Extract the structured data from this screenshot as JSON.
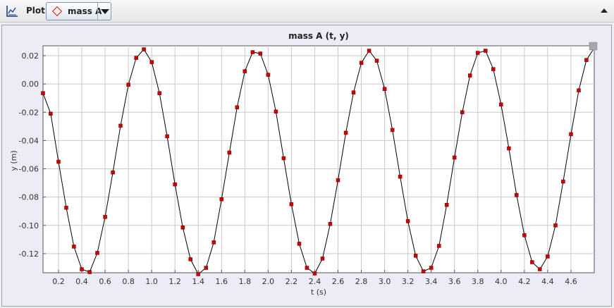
{
  "toolbar": {
    "plot_label": "Plot",
    "series_button_label": "mass A"
  },
  "colors": {
    "marker": "#cc0000",
    "line": "#000000",
    "grid": "#c8c8c8",
    "series_diamond": "#e01010"
  },
  "icons": {
    "plot_tool": "axes-chart-icon",
    "series_marker": "diamond-icon",
    "dropdown": "chevron-down-icon",
    "collapse": "chevron-up-icon",
    "resize": "resize-handle-icon"
  },
  "chart_data": {
    "type": "scatter",
    "title": "mass A (t, y)",
    "xlabel": "t (s)",
    "ylabel": "y (m)",
    "xlim": [
      0.067,
      4.8
    ],
    "ylim": [
      -0.1335,
      0.027
    ],
    "xticks": [
      "0.2",
      "0.4",
      "0.6",
      "0.8",
      "1.0",
      "1.2",
      "1.4",
      "1.6",
      "1.8",
      "2.0",
      "2.2",
      "2.4",
      "2.6",
      "2.8",
      "3.0",
      "3.2",
      "3.4",
      "3.6",
      "3.8",
      "4.0",
      "4.2",
      "4.4",
      "4.6"
    ],
    "yticks": [
      "0.02",
      "0.00",
      "-0.02",
      "-0.04",
      "-0.06",
      "-0.08",
      "-0.10",
      "-0.12"
    ],
    "grid": true,
    "series": [
      {
        "values": [
          [
            0.067,
            -0.0065
          ],
          [
            0.133,
            -0.021
          ],
          [
            0.2,
            -0.055
          ],
          [
            0.267,
            -0.0875
          ],
          [
            0.333,
            -0.115
          ],
          [
            0.4,
            -0.131
          ],
          [
            0.467,
            -0.133
          ],
          [
            0.533,
            -0.1195
          ],
          [
            0.6,
            -0.094
          ],
          [
            0.667,
            -0.0625
          ],
          [
            0.733,
            -0.0295
          ],
          [
            0.8,
            -0.0005
          ],
          [
            0.867,
            0.0185
          ],
          [
            0.933,
            0.0245
          ],
          [
            1.0,
            0.0155
          ],
          [
            1.067,
            -0.0065
          ],
          [
            1.133,
            -0.037
          ],
          [
            1.2,
            -0.071
          ],
          [
            1.267,
            -0.1015
          ],
          [
            1.333,
            -0.124
          ],
          [
            1.4,
            -0.1345
          ],
          [
            1.467,
            -0.13
          ],
          [
            1.533,
            -0.112
          ],
          [
            1.6,
            -0.0815
          ],
          [
            1.667,
            -0.0485
          ],
          [
            1.733,
            -0.0165
          ],
          [
            1.8,
            0.009
          ],
          [
            1.867,
            0.0225
          ],
          [
            1.933,
            0.0215
          ],
          [
            2.0,
            0.0065
          ],
          [
            2.067,
            -0.0195
          ],
          [
            2.133,
            -0.0525
          ],
          [
            2.2,
            -0.085
          ],
          [
            2.267,
            -0.113
          ],
          [
            2.333,
            -0.13
          ],
          [
            2.4,
            -0.134
          ],
          [
            2.467,
            -0.1235
          ],
          [
            2.533,
            -0.099
          ],
          [
            2.6,
            -0.068
          ],
          [
            2.667,
            -0.0345
          ],
          [
            2.733,
            -0.006
          ],
          [
            2.8,
            0.015
          ],
          [
            2.867,
            0.0235
          ],
          [
            2.933,
            0.0165
          ],
          [
            3.0,
            -0.0035
          ],
          [
            3.067,
            -0.0325
          ],
          [
            3.133,
            -0.0655
          ],
          [
            3.2,
            -0.097
          ],
          [
            3.267,
            -0.1215
          ],
          [
            3.333,
            -0.1325
          ],
          [
            3.4,
            -0.13
          ],
          [
            3.467,
            -0.1145
          ],
          [
            3.533,
            -0.0855
          ],
          [
            3.6,
            -0.052
          ],
          [
            3.667,
            -0.02
          ],
          [
            3.733,
            0.006
          ],
          [
            3.8,
            0.022
          ],
          [
            3.867,
            0.0235
          ],
          [
            3.933,
            0.0105
          ],
          [
            4.0,
            -0.0145
          ],
          [
            4.067,
            -0.0455
          ],
          [
            4.133,
            -0.0785
          ],
          [
            4.2,
            -0.107
          ],
          [
            4.267,
            -0.126
          ],
          [
            4.333,
            -0.131
          ],
          [
            4.4,
            -0.122
          ],
          [
            4.467,
            -0.1
          ],
          [
            4.533,
            -0.069
          ],
          [
            4.6,
            -0.0355
          ],
          [
            4.667,
            -0.0045
          ],
          [
            4.733,
            0.017
          ],
          [
            4.8,
            0.0255
          ]
        ]
      }
    ]
  }
}
